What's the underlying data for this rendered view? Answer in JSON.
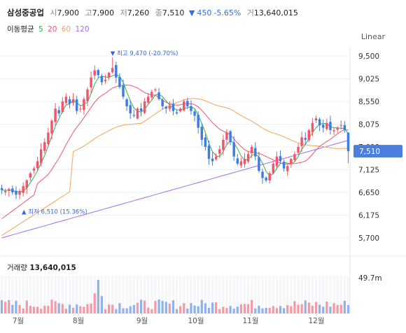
{
  "header": {
    "name": "삼성중공업",
    "open_label": "시",
    "open": "7,900",
    "high_label": "고",
    "high": "7,900",
    "low_label": "저",
    "low": "7,260",
    "close_label": "종",
    "close": "7,510",
    "change_arrow": "▼",
    "change": "450",
    "change_pct": "-5.65%",
    "volume_label": "거",
    "volume": "13,640,015"
  },
  "ma_legend": {
    "label": "이동평균",
    "items": [
      {
        "period": "5",
        "color": "#2db24a"
      },
      {
        "period": "20",
        "color": "#f0556b"
      },
      {
        "period": "60",
        "color": "#f3a45a"
      },
      {
        "period": "120",
        "color": "#a26bf0"
      }
    ]
  },
  "scale_button": "Linear",
  "colors": {
    "up": "#f0556b",
    "down": "#3d7de0",
    "ma5": "#2db24a",
    "ma20": "#f0556b",
    "ma60": "#f3a45a",
    "ma120": "#a26bf0",
    "price_tag": "#4a7fe0"
  },
  "chart_data": {
    "type": "candlestick",
    "y_axis": {
      "ticks": [
        "9,500",
        "9,025",
        "8,550",
        "8,075",
        "7,600",
        "7,125",
        "6,650",
        "6,175",
        "5,700"
      ],
      "range": [
        5500,
        9800
      ]
    },
    "x_axis": {
      "months": [
        "7월",
        "8월",
        "9월",
        "10월",
        "11월",
        "12월"
      ]
    },
    "last_price_tag": "7,510",
    "annotations": {
      "high": {
        "text": "최고 9,470 (-20.70%)",
        "value": 9470
      },
      "low": {
        "text": "최저 6,510 (15.36%)",
        "value": 6510
      }
    },
    "volume_panel": {
      "title": "거래량",
      "value": "13,640,015",
      "axis_label": "49.7m"
    },
    "closes": [
      6700,
      6680,
      6720,
      6650,
      6600,
      6680,
      6780,
      6900,
      7050,
      7150,
      7300,
      7550,
      7700,
      7900,
      8150,
      8400,
      8300,
      8550,
      8650,
      8500,
      8600,
      8350,
      8400,
      8600,
      8800,
      9050,
      9200,
      9100,
      8950,
      9000,
      9150,
      9250,
      9050,
      8850,
      8650,
      8450,
      8300,
      8250,
      8400,
      8350,
      8550,
      8650,
      8750,
      8800,
      8600,
      8450,
      8400,
      8450,
      8350,
      8300,
      8400,
      8550,
      8450,
      8350,
      8250,
      8000,
      7750,
      7600,
      7350,
      7300,
      7400,
      7550,
      7750,
      7900,
      7700,
      7400,
      7250,
      7300,
      7350,
      7450,
      7600,
      7400,
      7100,
      6950,
      6900,
      7050,
      7250,
      7400,
      7300,
      7150,
      7200,
      7350,
      7450,
      7600,
      7800,
      7750,
      7950,
      8100,
      8200,
      8050,
      8000,
      8100,
      7950,
      7950,
      8000,
      8050,
      7960,
      7510
    ]
  }
}
